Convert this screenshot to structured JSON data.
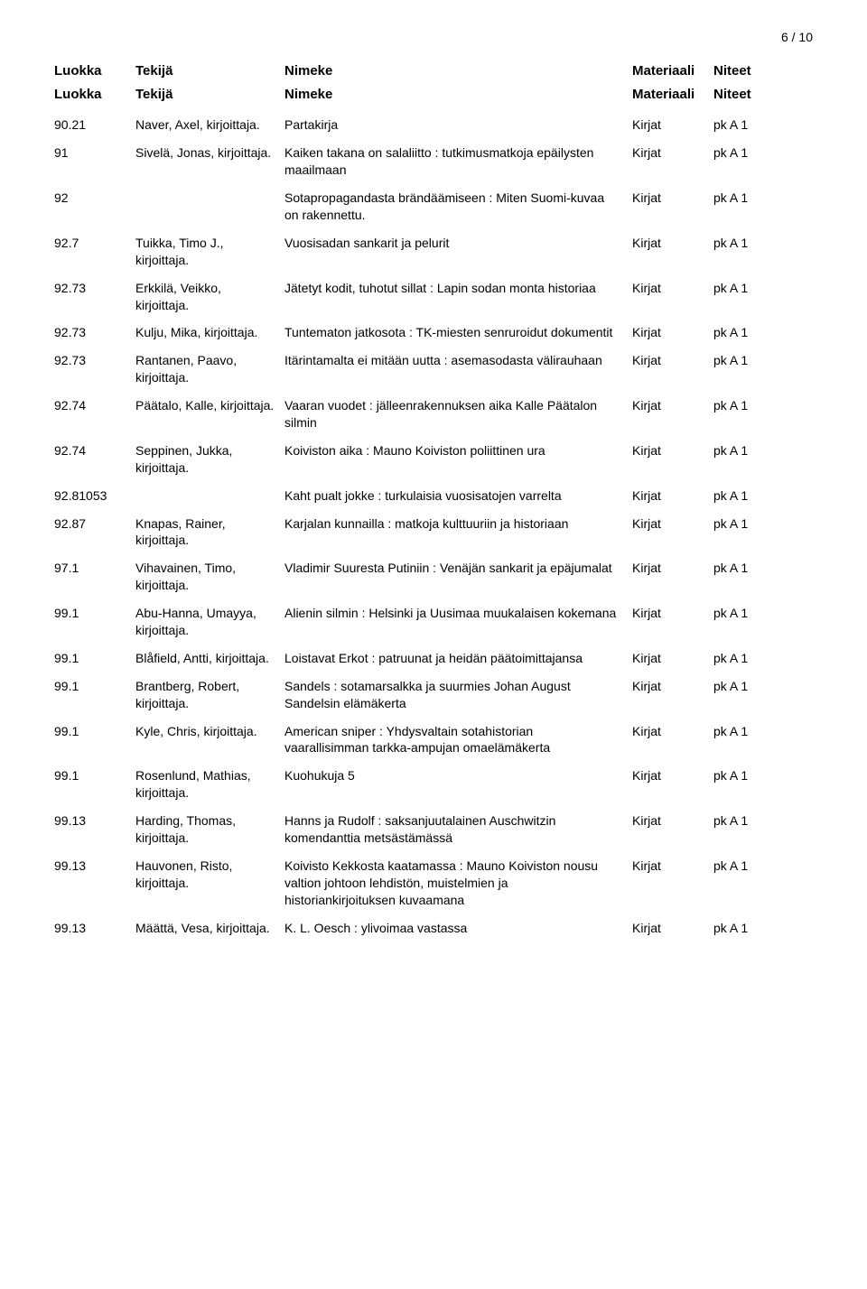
{
  "page_number": "6 / 10",
  "headers": {
    "class": "Luokka",
    "author": "Tekijä",
    "title": "Nimeke",
    "material": "Materiaali",
    "notes": "Niteet"
  },
  "rows": [
    {
      "class": "90.21",
      "author": "Naver, Axel, kirjoittaja.",
      "title": "Partakirja",
      "material": "Kirjat",
      "notes": "pk A 1"
    },
    {
      "class": "91",
      "author": "Sivelä, Jonas, kirjoittaja.",
      "title": "Kaiken takana on salaliitto : tutkimusmatkoja epäilysten maailmaan",
      "material": "Kirjat",
      "notes": "pk A 1"
    },
    {
      "class": "92",
      "author": "",
      "title": "Sotapropagandasta brändäämiseen : Miten Suomi-kuvaa on rakennettu.",
      "material": "Kirjat",
      "notes": "pk A 1"
    },
    {
      "class": "92.7",
      "author": "Tuikka, Timo J., kirjoittaja.",
      "title": "Vuosisadan sankarit ja pelurit",
      "material": "Kirjat",
      "notes": "pk A 1"
    },
    {
      "class": "92.73",
      "author": "Erkkilä, Veikko, kirjoittaja.",
      "title": "Jätetyt kodit, tuhotut sillat : Lapin sodan monta historiaa",
      "material": "Kirjat",
      "notes": "pk A 1"
    },
    {
      "class": "92.73",
      "author": "Kulju, Mika, kirjoittaja.",
      "title": "Tuntematon jatkosota : TK-miesten senruroidut dokumentit",
      "material": "Kirjat",
      "notes": "pk A 1"
    },
    {
      "class": "92.73",
      "author": "Rantanen, Paavo, kirjoittaja.",
      "title": "Itärintamalta ei mitään uutta : asemasodasta välirauhaan",
      "material": "Kirjat",
      "notes": "pk A 1"
    },
    {
      "class": "92.74",
      "author": "Päätalo, Kalle, kirjoittaja.",
      "title": "Vaaran vuodet : jälleenrakennuksen aika Kalle Päätalon silmin",
      "material": "Kirjat",
      "notes": "pk A 1"
    },
    {
      "class": "92.74",
      "author": "Seppinen, Jukka, kirjoittaja.",
      "title": "Koiviston aika : Mauno Koiviston poliittinen ura",
      "material": "Kirjat",
      "notes": "pk A 1"
    },
    {
      "class": "92.81053",
      "author": "",
      "title": "Kaht pualt jokke : turkulaisia vuosisatojen varrelta",
      "material": "Kirjat",
      "notes": "pk A 1"
    },
    {
      "class": "92.87",
      "author": "Knapas, Rainer, kirjoittaja.",
      "title": "Karjalan kunnailla : matkoja kulttuuriin ja historiaan",
      "material": "Kirjat",
      "notes": "pk A 1"
    },
    {
      "class": "97.1",
      "author": "Vihavainen, Timo, kirjoittaja.",
      "title": "Vladimir Suuresta Putiniin : Venäjän sankarit ja epäjumalat",
      "material": "Kirjat",
      "notes": "pk A 1"
    },
    {
      "class": "99.1",
      "author": "Abu-Hanna, Umayya, kirjoittaja.",
      "title": "Alienin silmin : Helsinki ja Uusimaa muukalaisen kokemana",
      "material": "Kirjat",
      "notes": "pk A 1"
    },
    {
      "class": "99.1",
      "author": "Blåfield, Antti, kirjoittaja.",
      "title": "Loistavat Erkot : patruunat ja heidän päätoimittajansa",
      "material": "Kirjat",
      "notes": "pk A 1"
    },
    {
      "class": "99.1",
      "author": "Brantberg, Robert, kirjoittaja.",
      "title": "Sandels : sotamarsalkka ja suurmies Johan August Sandelsin elämäkerta",
      "material": "Kirjat",
      "notes": "pk A 1"
    },
    {
      "class": "99.1",
      "author": "Kyle, Chris, kirjoittaja.",
      "title": "American sniper : Yhdysvaltain sotahistorian vaarallisimman tarkka-ampujan omaelämäkerta",
      "material": "Kirjat",
      "notes": "pk A 1"
    },
    {
      "class": "99.1",
      "author": "Rosenlund, Mathias, kirjoittaja.",
      "title": "Kuohukuja 5",
      "material": "Kirjat",
      "notes": "pk A 1"
    },
    {
      "class": "99.13",
      "author": "Harding, Thomas, kirjoittaja.",
      "title": "Hanns ja Rudolf : saksanjuutalainen Auschwitzin komendanttia metsästämässä",
      "material": "Kirjat",
      "notes": "pk A 1"
    },
    {
      "class": "99.13",
      "author": "Hauvonen, Risto, kirjoittaja.",
      "title": "Koivisto Kekkosta kaatamassa : Mauno Koiviston nousu valtion johtoon lehdistön, muistelmien ja historiankirjoituksen kuvaamana",
      "material": "Kirjat",
      "notes": "pk A 1"
    },
    {
      "class": "99.13",
      "author": "Määttä, Vesa, kirjoittaja.",
      "title": "K. L. Oesch : ylivoimaa vastassa",
      "material": "Kirjat",
      "notes": "pk A 1"
    }
  ]
}
